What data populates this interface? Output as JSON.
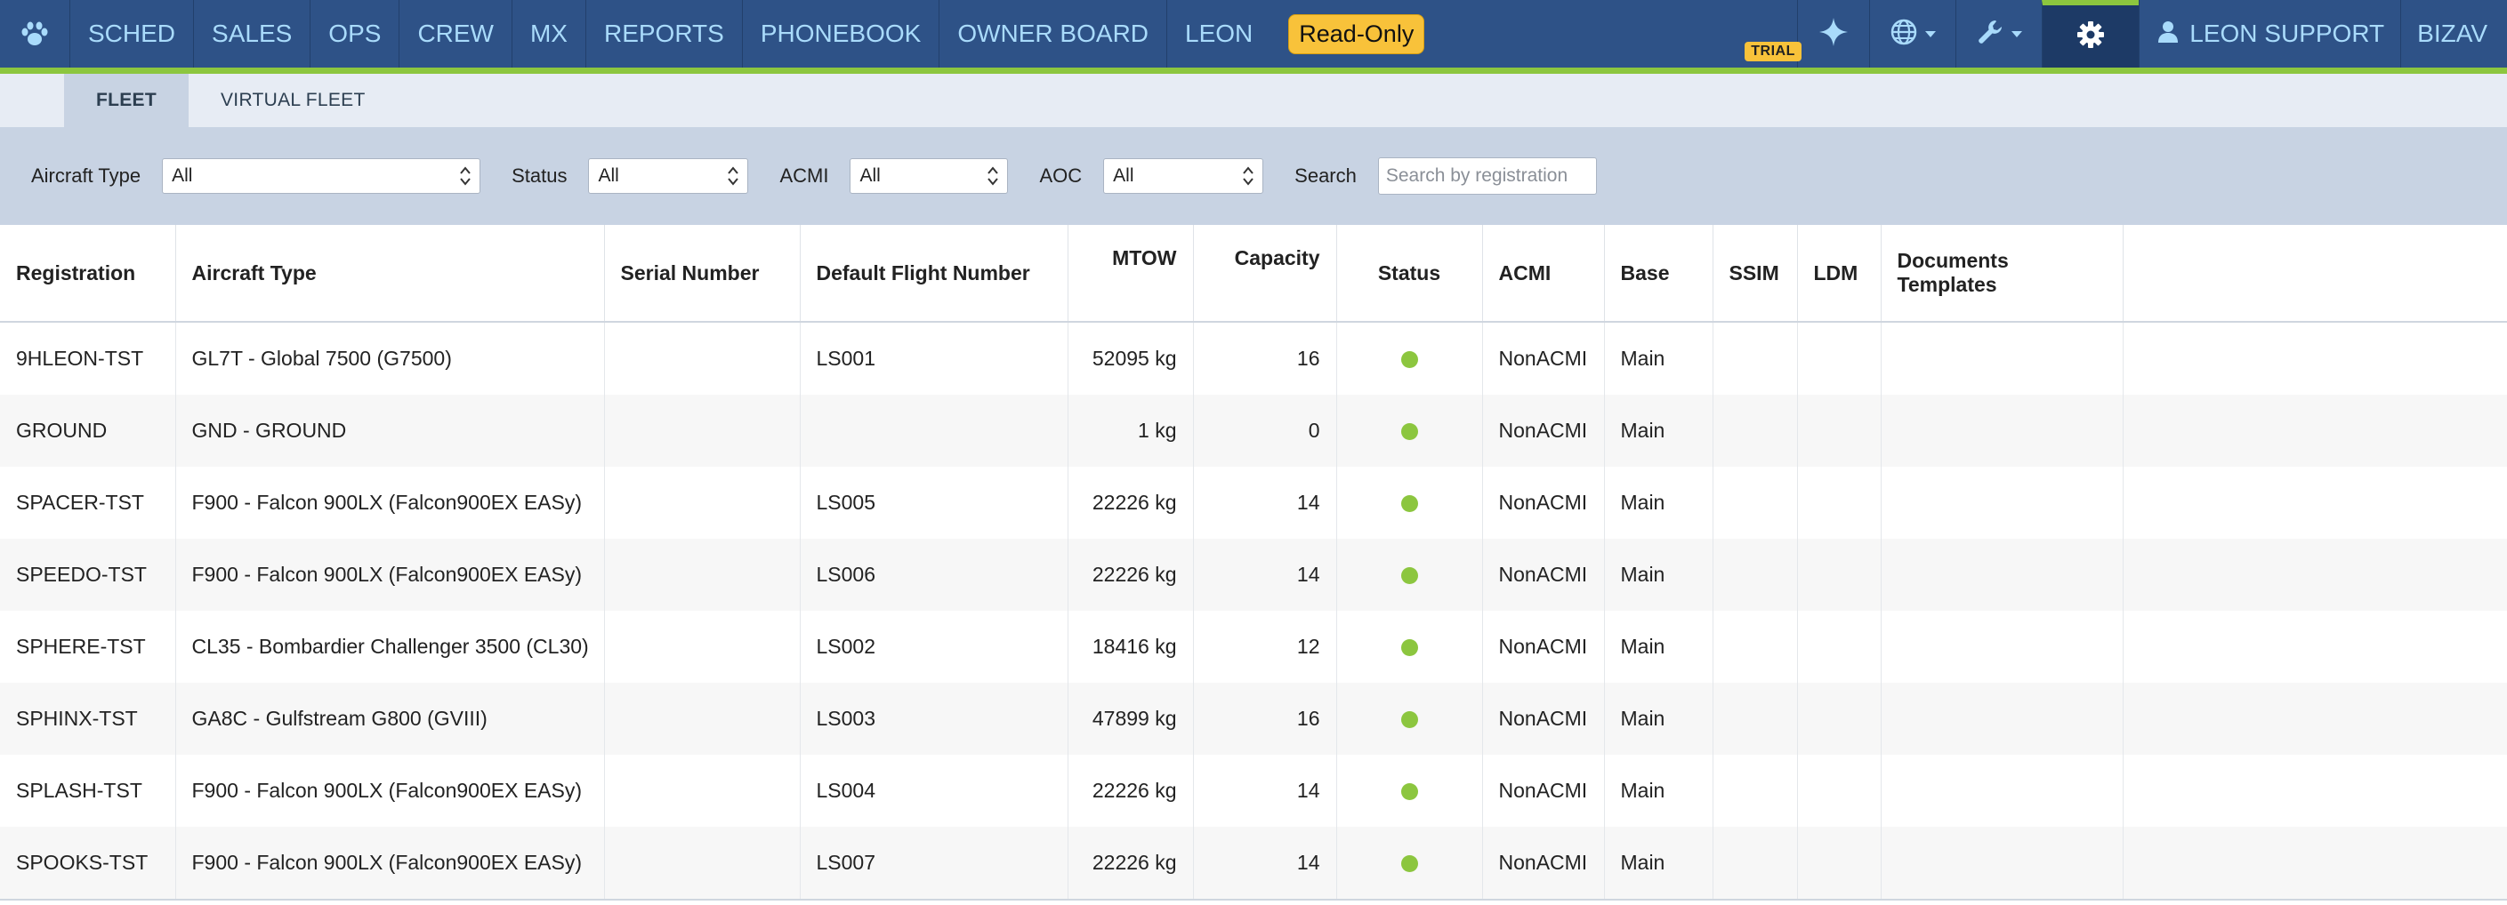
{
  "nav": {
    "items": [
      "SCHED",
      "SALES",
      "OPS",
      "CREW",
      "MX",
      "REPORTS",
      "PHONEBOOK",
      "OWNER BOARD",
      "LEON"
    ],
    "readonly_badge": "Read-Only",
    "trial_badge": "TRIAL",
    "user": "LEON SUPPORT",
    "company": "BIZAV",
    "icons": [
      "paw-logo-icon",
      "sparkle-icon",
      "globe-icon",
      "wrench-icon",
      "gear-icon",
      "user-icon"
    ],
    "colors": {
      "bar": "#2e5287",
      "accent": "#8cc63f",
      "link": "#a9dbfb",
      "badge": "#f8c23a"
    }
  },
  "tabs": [
    "FLEET",
    "VIRTUAL FLEET"
  ],
  "filters": {
    "aircraft_type": {
      "label": "Aircraft Type",
      "value": "All"
    },
    "status": {
      "label": "Status",
      "value": "All"
    },
    "acmi": {
      "label": "ACMI",
      "value": "All"
    },
    "aoc": {
      "label": "AOC",
      "value": "All"
    },
    "search": {
      "label": "Search",
      "placeholder": "Search by registration"
    }
  },
  "table": {
    "columns": [
      "Registration",
      "Aircraft Type",
      "Serial Number",
      "Default Flight Number",
      "MTOW",
      "Capacity",
      "Status",
      "ACMI",
      "Base",
      "SSIM",
      "LDM",
      "Documents Templates"
    ],
    "rows": [
      {
        "registration": "9HLEON-TST",
        "aircraft_type": "GL7T - Global 7500 (G7500)",
        "serial": "",
        "flight_no": "LS001",
        "mtow": "52095 kg",
        "capacity": "16",
        "status": "active",
        "acmi": "NonACMI",
        "base": "Main"
      },
      {
        "registration": "GROUND",
        "aircraft_type": "GND - GROUND",
        "serial": "",
        "flight_no": "",
        "mtow": "1 kg",
        "capacity": "0",
        "status": "active",
        "acmi": "NonACMI",
        "base": "Main"
      },
      {
        "registration": "SPACER-TST",
        "aircraft_type": "F900 - Falcon 900LX (Falcon900EX EASy)",
        "serial": "",
        "flight_no": "LS005",
        "mtow": "22226 kg",
        "capacity": "14",
        "status": "active",
        "acmi": "NonACMI",
        "base": "Main"
      },
      {
        "registration": "SPEEDO-TST",
        "aircraft_type": "F900 - Falcon 900LX (Falcon900EX EASy)",
        "serial": "",
        "flight_no": "LS006",
        "mtow": "22226 kg",
        "capacity": "14",
        "status": "active",
        "acmi": "NonACMI",
        "base": "Main"
      },
      {
        "registration": "SPHERE-TST",
        "aircraft_type": "CL35 - Bombardier Challenger 3500 (CL30)",
        "serial": "",
        "flight_no": "LS002",
        "mtow": "18416 kg",
        "capacity": "12",
        "status": "active",
        "acmi": "NonACMI",
        "base": "Main"
      },
      {
        "registration": "SPHINX-TST",
        "aircraft_type": "GA8C - Gulfstream G800 (GVIII)",
        "serial": "",
        "flight_no": "LS003",
        "mtow": "47899 kg",
        "capacity": "16",
        "status": "active",
        "acmi": "NonACMI",
        "base": "Main"
      },
      {
        "registration": "SPLASH-TST",
        "aircraft_type": "F900 - Falcon 900LX (Falcon900EX EASy)",
        "serial": "",
        "flight_no": "LS004",
        "mtow": "22226 kg",
        "capacity": "14",
        "status": "active",
        "acmi": "NonACMI",
        "base": "Main"
      },
      {
        "registration": "SPOOKS-TST",
        "aircraft_type": "F900 - Falcon 900LX (Falcon900EX EASy)",
        "serial": "",
        "flight_no": "LS007",
        "mtow": "22226 kg",
        "capacity": "14",
        "status": "active",
        "acmi": "NonACMI",
        "base": "Main"
      }
    ]
  }
}
